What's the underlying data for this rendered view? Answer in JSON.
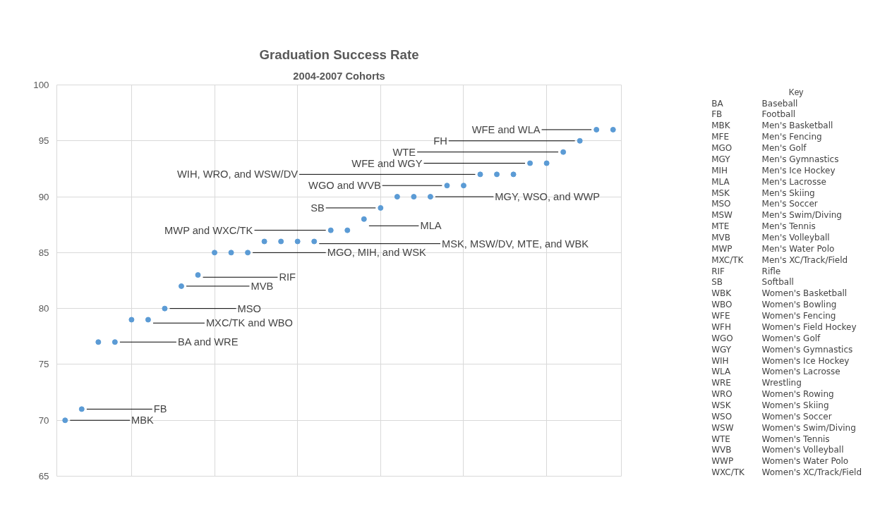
{
  "chart_data": [
    {
      "type": "scatter",
      "title": "Graduation Success Rate",
      "subtitle": "2004-2007 Cohorts",
      "color": "#5b9bd5",
      "marker": "circle",
      "categories": [
        null,
        null,
        null,
        null,
        null,
        null,
        null,
        null,
        null,
        null,
        null,
        null,
        null,
        null,
        null,
        null,
        null,
        null,
        null,
        null,
        null,
        null,
        null,
        null,
        null,
        null,
        null,
        null,
        null,
        null,
        null,
        null,
        null,
        null
      ],
      "values": [
        70,
        71,
        77,
        77,
        79,
        79,
        80,
        82,
        83,
        85,
        85,
        85,
        86,
        86,
        86,
        86,
        87,
        87,
        88,
        89,
        90,
        90,
        90,
        91,
        91,
        92,
        92,
        92,
        93,
        93,
        94,
        95,
        96,
        96
      ],
      "ylim": [
        65,
        100
      ],
      "yticks": [
        65,
        70,
        75,
        80,
        85,
        90,
        95,
        100
      ],
      "grid": true,
      "tick_labels": "y",
      "legend": false,
      "annotations": [
        "MBK",
        "FB",
        "BA and WRE",
        "MXC/TK and WBO",
        "MSO",
        "MVB",
        "RIF",
        "MGO, MIH, and WSK",
        "MSK, MSW/DV, MTE, and WBK",
        "MWP and WXC/TK",
        "MLA",
        "SB",
        "MGY, WSO, and WWP",
        "WGO and WVB",
        "WIH, WRO, and WSW/DV",
        "WFE and WGY",
        "WTE",
        "FH",
        "WFE and WLA"
      ]
    },
    {
      "type": "other",
      "title": "Key",
      "annotations": [
        "BA Baseball",
        "FB Football",
        "MBK Men's Basketball",
        "MFE Men's Fencing",
        "MGO Men's Golf",
        "MGY Men's Gymnastics",
        "MIH Men's Ice Hockey",
        "MLA Men's Lacrosse",
        "MSK Men's Skiing",
        "MSO Men's Soccer",
        "MSW Men's Swim/Diving",
        "MTE Men's Tennis",
        "MVB Men's Volleyball",
        "MWP Men's Water Polo",
        "MXC/TK Men's XC/Track/Field",
        "RIF Rifle",
        "SB Softball",
        "WBK Women's Basketball",
        "WBO Women's Bowling",
        "WFE Women's Fencing",
        "WFH Women's Field Hockey",
        "WGO Women's Golf",
        "WGY Women's Gymnastics",
        "WIH Women's Ice Hockey",
        "WLA Women's Lacrosse",
        "WRE Wrestling",
        "WRO Women's Rowing",
        "WSK Women's Skiing",
        "WSO Women's Soccer",
        "WSW Women's Swim/Diving",
        "WTE Women's Tennis",
        "WVB Women's Volleyball",
        "WWP Women's Water Polo",
        "WXC/TK Women's XC/Track/Field"
      ]
    }
  ]
}
